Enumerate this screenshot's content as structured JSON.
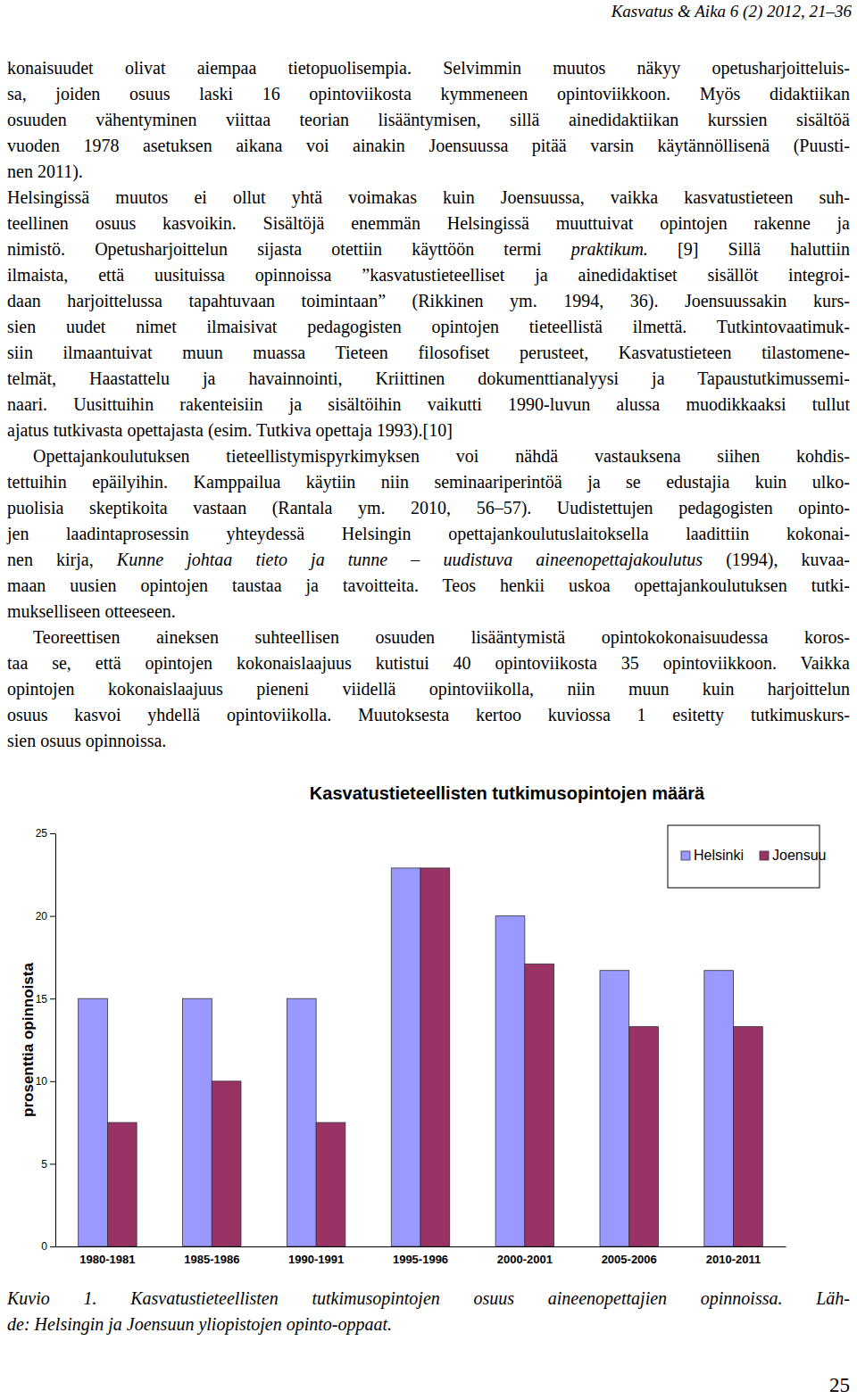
{
  "header": "Kasvatus & Aika 6 (2) 2012, 21–36",
  "paragraphs": [
    [
      [
        "konaisuudet olivat aiempaa tietopuolisempia. Selvimmin muutos näkyy opetusharjoitteluis-"
      ],
      [
        "sa, joiden osuus laski 16 opintoviikosta kymmeneen opintoviikkoon. Myös didaktiikan"
      ],
      [
        "osuuden vähentyminen viittaa teorian lisääntymisen, sillä ainedidaktiikan kurssien sisältöä"
      ],
      [
        "vuoden 1978 asetuksen aikana voi ainakin Joensuussa pitää varsin käytännöllisenä (Puusti-"
      ],
      [
        "nen 2011)."
      ]
    ],
    [
      [
        "Helsingissä muutos ei ollut yhtä voimakas kuin Joensuussa, vaikka kasvatustieteen suh-"
      ],
      [
        "teellinen osuus kasvoikin. Sisältöjä enemmän Helsingissä muuttuivat opintojen rakenne ja"
      ],
      [
        "nimistö. Opetusharjoittelun sijasta otettiin käyttöön termi ",
        {
          "em": "praktikum."
        },
        " [9] Sillä haluttiin"
      ],
      [
        "ilmaista, että uusituissa opinnoissa ”kasvatustieteelliset ja ainedidaktiset sisällöt integroi-"
      ],
      [
        "daan harjoittelussa tapahtuvaan toimintaan” (Rikkinen ym. 1994, 36). Joensuussakin kurs-"
      ],
      [
        "sien uudet nimet ilmaisivat pedagogisten opintojen tieteellistä ilmettä. Tutkintovaatimuk-"
      ],
      [
        "siin ilmaantuivat muun muassa Tieteen filosofiset perusteet, Kasvatustieteen tilastomene-"
      ],
      [
        "telmät, Haastattelu ja havainnointi, Kriittinen dokumenttianalyysi ja Tapaustutkimussemi-"
      ],
      [
        "naari. Uusittuihin rakenteisiin ja sisältöihin vaikutti 1990-luvun alussa muodikkaaksi tullut"
      ],
      [
        "ajatus tutkivasta opettajasta (esim. Tutkiva opettaja 1993).[10]"
      ]
    ],
    [
      [
        "Opettajankoulutuksen tieteellistymispyrkimyksen voi nähdä vastauksena siihen kohdis-"
      ],
      [
        "tettuihin epäilyihin. Kamppailua käytiin niin seminaariperintöä ja se edustajia kuin ulko-"
      ],
      [
        "puolisia skeptikoita vastaan (Rantala ym. 2010, 56–57). Uudistettujen pedagogisten opinto-"
      ],
      [
        "jen laadintaprosessin yhteydessä Helsingin opettajankoulutuslaitoksella laadittiin kokonai-"
      ],
      [
        "nen kirja, ",
        {
          "em": "Kunne johtaa tieto ja tunne – uudistuva aineenopettajakoulutus"
        },
        " (1994), kuvaa-"
      ],
      [
        "maan uusien opintojen taustaa ja tavoitteita. Teos henkii uskoa opettajankoulutuksen tutki-"
      ],
      [
        "mukselliseen otteeseen."
      ]
    ],
    [
      [
        "Teoreettisen aineksen suhteellisen osuuden lisääntymistä opintokokonaisuudessa koros-"
      ],
      [
        "taa se, että opintojen kokonaislaajuus kutistui 40 opintoviikosta 35 opintoviikkoon. Vaikka"
      ],
      [
        "opintojen kokonaislaajuus pieneni viidellä opintoviikolla, niin muun kuin harjoittelun"
      ],
      [
        "osuus kasvoi yhdellä opintoviikolla. Muutoksesta kertoo kuviossa 1 esitetty tutkimuskurs-"
      ],
      [
        "sien osuus opinnoissa."
      ]
    ]
  ],
  "chart_data": {
    "type": "bar",
    "title": "Kasvatustieteellisten tutkimusopintojen määrä",
    "y_label": "prosenttia opinnoista",
    "categories": [
      "1980-1981",
      "1985-1986",
      "1990-1991",
      "1995-1996",
      "2000-2001",
      "2005-2006",
      "2010-2011"
    ],
    "series": [
      {
        "name": "Helsinki",
        "color": "#9999ff",
        "values": [
          15,
          15,
          15,
          22.9,
          20,
          16.7,
          16.7
        ]
      },
      {
        "name": "Joensuu",
        "color": "#993366",
        "values": [
          7.5,
          10,
          7.5,
          22.9,
          17.1,
          13.3,
          13.3
        ]
      }
    ],
    "ylim": [
      0,
      25
    ],
    "yticks": [
      0,
      5,
      10,
      15,
      20,
      25
    ],
    "grid": false,
    "legend": "upper right"
  },
  "caption": [
    "Kuvio 1. Kasvatustieteellisten tutkimusopintojen osuus aineenopettajien opinnoissa. Läh-",
    "de: Helsingin ja Joensuun yliopistojen opinto-oppaat."
  ],
  "page_number": 25
}
